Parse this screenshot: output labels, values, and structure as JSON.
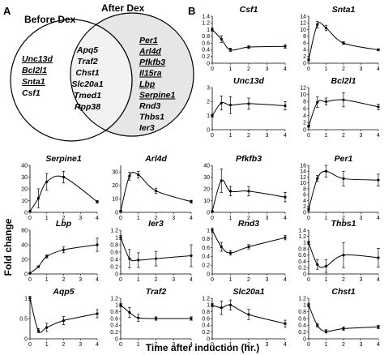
{
  "panel_a": {
    "letter": "A",
    "left_label": "Before Dex",
    "right_label": "After Dex",
    "left_only": [
      {
        "text": "Unc13d",
        "underline": true
      },
      {
        "text": "Bcl2l1",
        "underline": true
      },
      {
        "text": "Snta1",
        "underline": true
      },
      {
        "text": "Csf1",
        "underline": false
      }
    ],
    "overlap": [
      "Apq5",
      "Traf2",
      "Chst1",
      "Slc20a1",
      "Tmed1",
      "Rpp38"
    ],
    "right_only": [
      {
        "text": "Per1",
        "underline": true
      },
      {
        "text": "Arl4d",
        "underline": true
      },
      {
        "text": "Pfkfb3",
        "underline": true
      },
      {
        "text": "Il15ra",
        "underline": true
      },
      {
        "text": "Lbp",
        "underline": true
      },
      {
        "text": "Serpine1",
        "underline": true
      },
      {
        "text": "Rnd3",
        "underline": false
      },
      {
        "text": "Thbs1",
        "underline": false
      },
      {
        "text": "Ier3",
        "underline": false
      }
    ],
    "colors": {
      "left_fill": "#ffffff",
      "right_fill": "#e6e6e6",
      "overlap_fill": "#f2f2f2"
    }
  },
  "panel_b": {
    "letter": "B"
  },
  "ylabel": "Fold change",
  "xlabel": "Time after induction (hr.)",
  "chart_data": [
    {
      "type": "line",
      "title": "Csf1",
      "x": [
        0,
        0.5,
        1,
        2,
        4
      ],
      "y": [
        1.0,
        0.72,
        0.4,
        0.48,
        0.5
      ],
      "err": [
        0.05,
        0.1,
        0.05,
        0.04,
        0.05
      ],
      "ylim": [
        0,
        1.4
      ],
      "yticks": [
        "0",
        "0.2",
        "0.4",
        "0.6",
        "0.8",
        "1",
        "1.2",
        "1.4"
      ]
    },
    {
      "type": "line",
      "title": "Snta1",
      "x": [
        0,
        0.5,
        1,
        2,
        4
      ],
      "y": [
        1.0,
        11.5,
        10.5,
        6.0,
        4.0
      ],
      "err": [
        0.3,
        1.0,
        0.8,
        0.4,
        0.3
      ],
      "ylim": [
        0,
        14
      ],
      "yticks": [
        "0",
        "2",
        "4",
        "6",
        "8",
        "10",
        "12",
        "14"
      ]
    },
    {
      "type": "line",
      "title": "Unc13d",
      "x": [
        0,
        0.5,
        1,
        2,
        4
      ],
      "y": [
        1.0,
        1.9,
        1.75,
        1.85,
        1.7
      ],
      "err": [
        0.1,
        0.5,
        0.6,
        0.4,
        0.3
      ],
      "ylim": [
        0,
        3
      ],
      "yticks": [
        "0",
        "1",
        "2",
        "3"
      ]
    },
    {
      "type": "line",
      "title": "Bcl2l1",
      "x": [
        0,
        0.5,
        1,
        2,
        4
      ],
      "y": [
        1.0,
        7.8,
        8.0,
        8.5,
        6.5
      ],
      "err": [
        0.3,
        1.5,
        1.0,
        2.0,
        0.8
      ],
      "ylim": [
        0,
        12
      ],
      "yticks": [
        "0",
        "2",
        "4",
        "6",
        "8",
        "10",
        "12"
      ]
    },
    {
      "type": "line",
      "title": "Serpine1",
      "x": [
        0,
        0.5,
        1,
        2,
        4
      ],
      "y": [
        1.0,
        12.0,
        26.0,
        30.0,
        9.0
      ],
      "err": [
        0.5,
        8.0,
        7.0,
        5.0,
        1.0
      ],
      "ylim": [
        0,
        40
      ],
      "yticks": [
        "0",
        "10",
        "20",
        "30",
        "40"
      ]
    },
    {
      "type": "line",
      "title": "Arl4d",
      "x": [
        0,
        0.5,
        1,
        2,
        4
      ],
      "y": [
        1.0,
        27.0,
        28.0,
        16.0,
        8.0
      ],
      "err": [
        0.5,
        3.0,
        2.5,
        2.0,
        1.0
      ],
      "ylim": [
        0,
        35
      ],
      "yticks": [
        "0",
        "10",
        "20",
        "30"
      ]
    },
    {
      "type": "line",
      "title": "Pfkfb3",
      "x": [
        0,
        0.5,
        1,
        2,
        4
      ],
      "y": [
        1.0,
        27.0,
        18.0,
        18.0,
        13.0
      ],
      "err": [
        0.5,
        10.0,
        4.0,
        4.0,
        4.0
      ],
      "ylim": [
        0,
        40
      ],
      "yticks": [
        "0",
        "10",
        "20",
        "30",
        "40"
      ]
    },
    {
      "type": "line",
      "title": "Per1",
      "x": [
        0,
        0.5,
        1,
        2,
        4
      ],
      "y": [
        1.0,
        11.5,
        14.0,
        11.5,
        11.0
      ],
      "err": [
        0.5,
        1.0,
        2.0,
        2.5,
        2.0
      ],
      "ylim": [
        0,
        16
      ],
      "yticks": [
        "0",
        "2",
        "4",
        "6",
        "8",
        "10",
        "12",
        "14",
        "16"
      ]
    },
    {
      "type": "line",
      "title": "Lbp",
      "x": [
        0,
        0.5,
        1,
        2,
        4
      ],
      "y": [
        1.0,
        10.0,
        24.0,
        33.0,
        40.0
      ],
      "err": [
        0.5,
        1.0,
        2.0,
        4.0,
        9.0
      ],
      "ylim": [
        0,
        60
      ],
      "yticks": [
        "0",
        "20",
        "40",
        "60"
      ]
    },
    {
      "type": "line",
      "title": "Ier3",
      "x": [
        0,
        0.5,
        1,
        2,
        4
      ],
      "y": [
        1.0,
        0.42,
        0.38,
        0.42,
        0.5
      ],
      "err": [
        0.05,
        0.25,
        0.2,
        0.2,
        0.3
      ],
      "ylim": [
        0,
        1.2
      ],
      "yticks": [
        "0",
        "0.2",
        "0.4",
        "0.6",
        "0.8",
        "1",
        "1.2"
      ]
    },
    {
      "type": "line",
      "title": "Rnd3",
      "x": [
        0,
        0.5,
        1,
        2,
        4
      ],
      "y": [
        1.0,
        0.62,
        0.48,
        0.62,
        0.83
      ],
      "err": [
        0.05,
        0.1,
        0.05,
        0.05,
        0.05
      ],
      "ylim": [
        0,
        1
      ],
      "yticks": [
        "0",
        "0.2",
        "0.4",
        "0.6",
        "0.8",
        "1"
      ]
    },
    {
      "type": "line",
      "title": "Thbs1",
      "x": [
        0,
        0.5,
        1,
        2,
        4
      ],
      "y": [
        1.0,
        0.3,
        0.25,
        0.6,
        0.52
      ],
      "err": [
        0.05,
        0.15,
        0.2,
        0.4,
        0.3
      ],
      "ylim": [
        0,
        1.4
      ],
      "yticks": [
        "0",
        "0.2",
        "0.4",
        "0.6",
        "0.8",
        "1",
        "1.2",
        "1.4"
      ]
    },
    {
      "type": "line",
      "title": "Aqp5",
      "x": [
        0,
        0.5,
        1,
        2,
        4
      ],
      "y": [
        1.0,
        0.2,
        0.28,
        0.45,
        0.62
      ],
      "err": [
        0.05,
        0.05,
        0.1,
        0.1,
        0.1
      ],
      "ylim": [
        0,
        1
      ],
      "yticks": [
        "0",
        "0.5",
        "1"
      ]
    },
    {
      "type": "line",
      "title": "Traf2",
      "x": [
        0,
        0.5,
        1,
        2,
        4
      ],
      "y": [
        1.0,
        0.78,
        0.62,
        0.6,
        0.6
      ],
      "err": [
        0.05,
        0.15,
        0.1,
        0.05,
        0.05
      ],
      "ylim": [
        0,
        1.2
      ],
      "yticks": [
        "0",
        "0.2",
        "0.4",
        "0.6",
        "0.8",
        "1",
        "1.2"
      ]
    },
    {
      "type": "line",
      "title": "Slc20a1",
      "x": [
        0,
        0.5,
        1,
        2,
        4
      ],
      "y": [
        1.0,
        0.92,
        1.0,
        0.72,
        0.45
      ],
      "err": [
        0.05,
        0.2,
        0.15,
        0.15,
        0.1
      ],
      "ylim": [
        0,
        1.2
      ],
      "yticks": [
        "0",
        "0.2",
        "0.4",
        "0.6",
        "0.8",
        "1",
        "1.2"
      ]
    },
    {
      "type": "line",
      "title": "Chst1",
      "x": [
        0,
        0.5,
        1,
        2,
        4
      ],
      "y": [
        1.0,
        0.4,
        0.22,
        0.3,
        0.35
      ],
      "err": [
        0.05,
        0.05,
        0.05,
        0.05,
        0.05
      ],
      "ylim": [
        0,
        1.2
      ],
      "yticks": [
        "0",
        "0.2",
        "0.4",
        "0.6",
        "0.8",
        "1",
        "1.2"
      ]
    }
  ],
  "xticks": [
    "0",
    "1",
    "2",
    "3",
    "4"
  ]
}
